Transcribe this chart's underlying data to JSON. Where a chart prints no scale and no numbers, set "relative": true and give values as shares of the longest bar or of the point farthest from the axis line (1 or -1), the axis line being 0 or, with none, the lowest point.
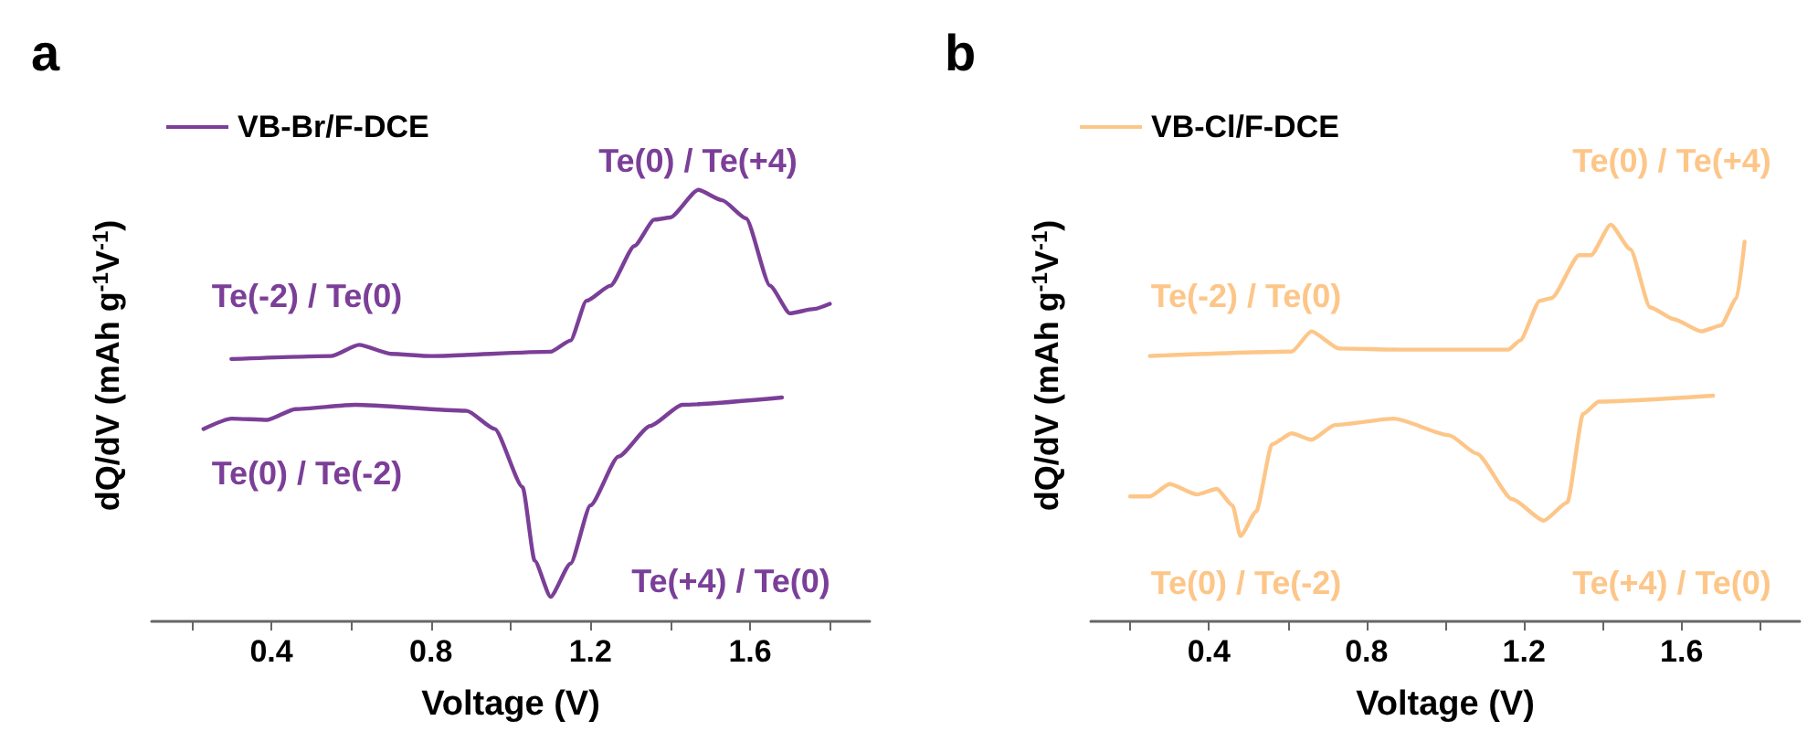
{
  "chart_data": [
    {
      "type": "line",
      "title": "a",
      "xlabel": "Voltage (V)",
      "ylabel": "dQ/dV (mAh g$^{-1}$V$^{-1}$)",
      "relative": true,
      "legend": "top left",
      "grid": false,
      "marker": "none",
      "line_style": "solid",
      "tick_labels": "x",
      "xlim": [
        0.1,
        1.9
      ],
      "xticks": [
        {
          "value": 0.2,
          "label": null
        },
        0.4,
        {
          "value": 0.6,
          "label": null
        },
        0.8,
        {
          "value": 1.0,
          "label": null
        },
        1.2,
        {
          "value": 1.4,
          "label": null
        },
        1.6,
        {
          "value": 1.8,
          "label": null
        }
      ],
      "annotations": [
        "Te(0) / Te(+4)",
        "Te(-2) / Te(0)",
        "Te(0) / Te(-2)",
        "Te(+4) / Te(0)"
      ],
      "series": [
        {
          "name": "VB-Br/F-DCE",
          "color": "#7b3f98",
          "x": [
            0.3,
            0.55,
            0.62,
            0.7,
            0.8,
            1.1,
            1.15,
            1.19,
            1.25,
            1.31,
            1.36,
            1.4,
            1.47,
            1.53,
            1.59,
            1.65,
            1.7,
            1.76,
            1.8
          ],
          "values": [
            0.608,
            0.615,
            0.641,
            0.62,
            0.615,
            0.625,
            0.651,
            0.743,
            0.778,
            0.87,
            0.931,
            0.936,
            1.0,
            0.976,
            0.934,
            0.778,
            0.714,
            0.724,
            0.736
          ]
        },
        {
          "color": "#7b3f98",
          "x": [
            0.23,
            0.3,
            0.39,
            0.46,
            0.61,
            0.89,
            0.96,
            1.03,
            1.06,
            1.1,
            1.15,
            1.2,
            1.27,
            1.35,
            1.43,
            1.68
          ],
          "values": [
            0.446,
            0.47,
            0.467,
            0.492,
            0.502,
            0.488,
            0.446,
            0.311,
            0.141,
            0.057,
            0.134,
            0.269,
            0.382,
            0.453,
            0.502,
            0.519
          ]
        }
      ]
    },
    {
      "type": "line",
      "title": "b",
      "xlabel": "Voltage (V)",
      "ylabel": "dQ/dV (mAh g$^{-1}$V$^{-1}$)",
      "relative": true,
      "legend": "top left",
      "grid": false,
      "marker": "none",
      "line_style": "solid",
      "tick_labels": "x",
      "xlim": [
        0.1,
        1.9
      ],
      "xticks": [
        {
          "value": 0.2,
          "label": null
        },
        0.4,
        {
          "value": 0.6,
          "label": null
        },
        0.8,
        {
          "value": 1.0,
          "label": null
        },
        1.2,
        {
          "value": 1.4,
          "label": null
        },
        1.6,
        {
          "value": 1.8,
          "label": null
        }
      ],
      "annotations": [
        "Te(0) / Te(+4)",
        "Te(-2) / Te(0)",
        "Te(0) / Te(-2)",
        "Te(+4) / Te(0)"
      ],
      "series": [
        {
          "name": "VB-Cl/F-DCE",
          "color": "#fdc689",
          "x": [
            0.25,
            0.61,
            0.66,
            0.73,
            0.88,
            1.16,
            1.19,
            1.24,
            1.27,
            1.34,
            1.37,
            1.42,
            1.47,
            1.52,
            1.58,
            1.65,
            1.7,
            1.74,
            1.76
          ],
          "values": [
            0.669,
            0.68,
            0.731,
            0.688,
            0.685,
            0.685,
            0.708,
            0.808,
            0.815,
            0.923,
            0.923,
            1.0,
            0.938,
            0.792,
            0.762,
            0.731,
            0.746,
            0.815,
            0.957
          ]
        },
        {
          "color": "#fdc689",
          "x": [
            0.2,
            0.25,
            0.3,
            0.37,
            0.42,
            0.46,
            0.48,
            0.52,
            0.56,
            0.61,
            0.66,
            0.72,
            0.87,
            1.01,
            1.08,
            1.17,
            1.25,
            1.31,
            1.35,
            1.39,
            1.68
          ],
          "values": [
            0.315,
            0.315,
            0.346,
            0.32,
            0.334,
            0.292,
            0.215,
            0.277,
            0.446,
            0.474,
            0.458,
            0.495,
            0.511,
            0.469,
            0.423,
            0.308,
            0.254,
            0.3,
            0.523,
            0.554,
            0.569
          ]
        }
      ]
    }
  ]
}
